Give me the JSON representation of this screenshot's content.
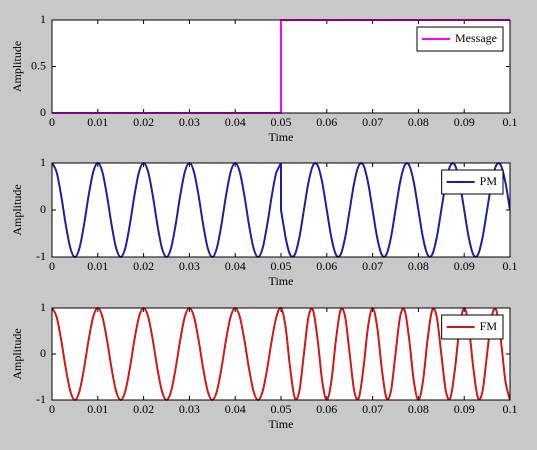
{
  "chart_data": [
    {
      "type": "line",
      "xlabel": "Time",
      "ylabel": "Amplitude",
      "legend": "upper right",
      "x": [
        0,
        0.05,
        0.05,
        0.1
      ],
      "series": [
        {
          "name": "Message",
          "color": "#ff00ff",
          "values": [
            0,
            0,
            1,
            1
          ]
        }
      ],
      "xlim": [
        0,
        0.1
      ],
      "ylim": [
        0,
        1
      ],
      "xticks": [
        0,
        0.01,
        0.02,
        0.03,
        0.04,
        0.05,
        0.06,
        0.07,
        0.08,
        0.09,
        0.1
      ],
      "yticks": [
        0,
        0.5,
        1
      ]
    },
    {
      "type": "line",
      "xlabel": "Time",
      "ylabel": "Amplitude",
      "legend": "upper right",
      "x": [
        0,
        0.001,
        0.002,
        0.003,
        0.004,
        0.005,
        0.006,
        0.007,
        0.008,
        0.009,
        0.01,
        0.011,
        0.012,
        0.013,
        0.014,
        0.015,
        0.016,
        0.017,
        0.018,
        0.019,
        0.02,
        0.021,
        0.022,
        0.023,
        0.024,
        0.025,
        0.026,
        0.027,
        0.028,
        0.029,
        0.03,
        0.031,
        0.032,
        0.033,
        0.034,
        0.035,
        0.036,
        0.037,
        0.038,
        0.039,
        0.04,
        0.041,
        0.042,
        0.043,
        0.044,
        0.045,
        0.046,
        0.047,
        0.048,
        0.049,
        0.05,
        0.05,
        0.051,
        0.052,
        0.053,
        0.054,
        0.055,
        0.056,
        0.057,
        0.058,
        0.059,
        0.06,
        0.061,
        0.062,
        0.063,
        0.064,
        0.065,
        0.066,
        0.067,
        0.068,
        0.069,
        0.07,
        0.071,
        0.072,
        0.073,
        0.074,
        0.075,
        0.076,
        0.077,
        0.078,
        0.079,
        0.08,
        0.081,
        0.082,
        0.083,
        0.084,
        0.085,
        0.086,
        0.087,
        0.088,
        0.089,
        0.09,
        0.091,
        0.092,
        0.093,
        0.094,
        0.095,
        0.096,
        0.097,
        0.098,
        0.099,
        0.1
      ],
      "series": [
        {
          "name": "PM",
          "color": "#1f1f9a",
          "values": [
            1,
            0.809,
            0.309,
            -0.309,
            -0.809,
            -1,
            -0.809,
            -0.309,
            0.309,
            0.809,
            1,
            0.809,
            0.309,
            -0.309,
            -0.809,
            -1,
            -0.809,
            -0.309,
            0.309,
            0.809,
            1,
            0.809,
            0.309,
            -0.309,
            -0.809,
            -1,
            -0.809,
            -0.309,
            0.309,
            0.809,
            1,
            0.809,
            0.309,
            -0.309,
            -0.809,
            -1,
            -0.809,
            -0.309,
            0.309,
            0.809,
            1,
            0.809,
            0.309,
            -0.309,
            -0.809,
            -1,
            -0.809,
            -0.309,
            0.309,
            0.809,
            1,
            0,
            -0.588,
            -0.951,
            -0.951,
            -0.588,
            0,
            0.588,
            0.951,
            0.951,
            0.588,
            0,
            -0.588,
            -0.951,
            -0.951,
            -0.588,
            0,
            0.588,
            0.951,
            0.951,
            0.588,
            0,
            -0.588,
            -0.951,
            -0.951,
            -0.588,
            0,
            0.588,
            0.951,
            0.951,
            0.588,
            0,
            -0.588,
            -0.951,
            -0.951,
            -0.588,
            0,
            0.588,
            0.951,
            0.951,
            0.588,
            0,
            -0.588,
            -0.951,
            -0.951,
            -0.588,
            0,
            0.588,
            0.951,
            0.951,
            0.588,
            0
          ]
        }
      ],
      "xlim": [
        0,
        0.1
      ],
      "ylim": [
        -1,
        1
      ],
      "xticks": [
        0,
        0.01,
        0.02,
        0.03,
        0.04,
        0.05,
        0.06,
        0.07,
        0.08,
        0.09,
        0.1
      ],
      "yticks": [
        -1,
        0,
        1
      ]
    },
    {
      "type": "line",
      "xlabel": "Time",
      "ylabel": "Amplitude",
      "legend": "upper right",
      "x": [
        0,
        0.001,
        0.002,
        0.003,
        0.004,
        0.005,
        0.006,
        0.007,
        0.008,
        0.009,
        0.01,
        0.011,
        0.012,
        0.013,
        0.014,
        0.015,
        0.016,
        0.017,
        0.018,
        0.019,
        0.02,
        0.021,
        0.022,
        0.023,
        0.024,
        0.025,
        0.026,
        0.027,
        0.028,
        0.029,
        0.03,
        0.031,
        0.032,
        0.033,
        0.034,
        0.035,
        0.036,
        0.037,
        0.038,
        0.039,
        0.04,
        0.041,
        0.042,
        0.043,
        0.044,
        0.045,
        0.046,
        0.047,
        0.048,
        0.049,
        0.05,
        0.051,
        0.052,
        0.053,
        0.054,
        0.055,
        0.056,
        0.057,
        0.058,
        0.059,
        0.06,
        0.061,
        0.062,
        0.063,
        0.064,
        0.065,
        0.066,
        0.067,
        0.068,
        0.069,
        0.07,
        0.071,
        0.072,
        0.073,
        0.074,
        0.075,
        0.076,
        0.077,
        0.078,
        0.079,
        0.08,
        0.081,
        0.082,
        0.083,
        0.084,
        0.085,
        0.086,
        0.087,
        0.088,
        0.089,
        0.09,
        0.091,
        0.092,
        0.093,
        0.094,
        0.095,
        0.096,
        0.097,
        0.098,
        0.099,
        0.1
      ],
      "series": [
        {
          "name": "FM",
          "color": "#cc1a1a",
          "values": [
            1,
            0.809,
            0.309,
            -0.309,
            -0.809,
            -1,
            -0.809,
            -0.309,
            0.309,
            0.809,
            1,
            0.809,
            0.309,
            -0.309,
            -0.809,
            -1,
            -0.809,
            -0.309,
            0.309,
            0.809,
            1,
            0.809,
            0.309,
            -0.309,
            -0.809,
            -1,
            -0.809,
            -0.309,
            0.309,
            0.809,
            1,
            0.809,
            0.309,
            -0.309,
            -0.809,
            -1,
            -0.809,
            -0.309,
            0.309,
            0.809,
            1,
            0.809,
            0.309,
            -0.309,
            -0.809,
            -1,
            -0.809,
            -0.309,
            0.309,
            0.809,
            1,
            0.588,
            -0.309,
            -0.951,
            -0.809,
            0,
            0.809,
            0.951,
            0.309,
            -0.588,
            -1,
            -0.588,
            0.309,
            0.951,
            0.809,
            0,
            -0.809,
            -0.951,
            -0.309,
            0.588,
            1,
            0.588,
            -0.309,
            -0.951,
            -0.809,
            0,
            0.809,
            0.951,
            0.309,
            -0.588,
            -1,
            -0.588,
            0.309,
            0.951,
            0.809,
            0,
            -0.809,
            -0.951,
            -0.309,
            0.588,
            1,
            0.588,
            -0.309,
            -0.951,
            -0.809,
            0,
            0.809,
            0.951,
            0.309,
            -0.588,
            -1
          ]
        }
      ],
      "xlim": [
        0,
        0.1
      ],
      "ylim": [
        -1,
        1
      ],
      "xticks": [
        0,
        0.01,
        0.02,
        0.03,
        0.04,
        0.05,
        0.06,
        0.07,
        0.08,
        0.09,
        0.1
      ],
      "yticks": [
        -1,
        0,
        1
      ]
    }
  ]
}
